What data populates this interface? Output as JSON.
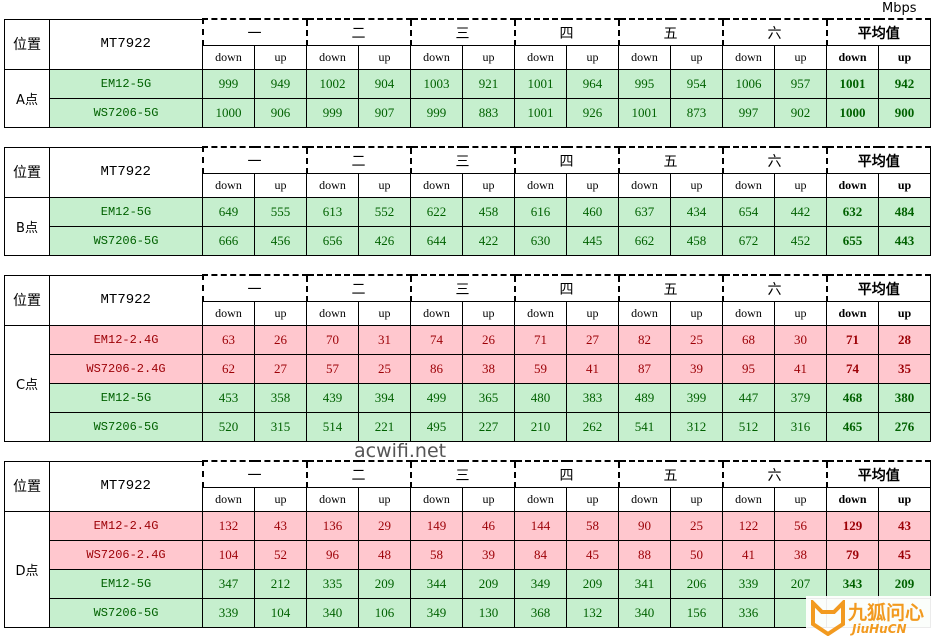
{
  "unit": "Mbps",
  "watermark": "acwifi.net",
  "logo": {
    "cn": "九狐问心",
    "en": "JiuHuCN"
  },
  "header": {
    "position": "位置",
    "device": "MT7922",
    "groups": [
      "一",
      "二",
      "三",
      "四",
      "五",
      "六",
      "平均值"
    ],
    "sub": [
      "down",
      "up"
    ]
  },
  "colors": {
    "green_fill": "#c6efce",
    "green_text": "#006100",
    "red_fill": "#ffc7ce",
    "red_text": "#9c0006"
  },
  "tables": [
    {
      "point": "A点",
      "rows": [
        {
          "name": "EM12-5G",
          "tone": "green",
          "values": [
            999,
            949,
            1002,
            904,
            1003,
            921,
            1001,
            964,
            995,
            954,
            1006,
            957,
            1001,
            942
          ]
        },
        {
          "name": "WS7206-5G",
          "tone": "green",
          "values": [
            1000,
            906,
            999,
            907,
            999,
            883,
            1001,
            926,
            1001,
            873,
            997,
            902,
            1000,
            900
          ]
        }
      ]
    },
    {
      "point": "B点",
      "rows": [
        {
          "name": "EM12-5G",
          "tone": "green",
          "values": [
            649,
            555,
            613,
            552,
            622,
            458,
            616,
            460,
            637,
            434,
            654,
            442,
            632,
            484
          ]
        },
        {
          "name": "WS7206-5G",
          "tone": "green",
          "values": [
            666,
            456,
            656,
            426,
            644,
            422,
            630,
            445,
            662,
            458,
            672,
            452,
            655,
            443
          ]
        }
      ]
    },
    {
      "point": "C点",
      "rows": [
        {
          "name": "EM12-2.4G",
          "tone": "red",
          "values": [
            63,
            26,
            70,
            31,
            74,
            26,
            71,
            27,
            82,
            25,
            68,
            30,
            71,
            28
          ]
        },
        {
          "name": "WS7206-2.4G",
          "tone": "red",
          "values": [
            62,
            27,
            57,
            25,
            86,
            38,
            59,
            41,
            87,
            39,
            95,
            41,
            74,
            35
          ]
        },
        {
          "name": "EM12-5G",
          "tone": "green",
          "values": [
            453,
            358,
            439,
            394,
            499,
            365,
            480,
            383,
            489,
            399,
            447,
            379,
            468,
            380
          ]
        },
        {
          "name": "WS7206-5G",
          "tone": "green",
          "values": [
            520,
            315,
            514,
            221,
            495,
            227,
            210,
            262,
            541,
            312,
            512,
            316,
            465,
            276
          ]
        }
      ]
    },
    {
      "point": "D点",
      "rows": [
        {
          "name": "EM12-2.4G",
          "tone": "red",
          "values": [
            132,
            43,
            136,
            29,
            149,
            46,
            144,
            58,
            90,
            25,
            122,
            56,
            129,
            43
          ]
        },
        {
          "name": "WS7206-2.4G",
          "tone": "red",
          "values": [
            104,
            52,
            96,
            48,
            58,
            39,
            84,
            45,
            88,
            50,
            41,
            38,
            79,
            45
          ]
        },
        {
          "name": "EM12-5G",
          "tone": "green",
          "values": [
            347,
            212,
            335,
            209,
            344,
            209,
            349,
            209,
            341,
            206,
            339,
            207,
            343,
            209
          ]
        },
        {
          "name": "WS7206-5G",
          "tone": "green",
          "values": [
            339,
            104,
            340,
            106,
            349,
            130,
            368,
            132,
            340,
            156,
            336,
            null,
            null,
            null
          ]
        }
      ]
    }
  ]
}
